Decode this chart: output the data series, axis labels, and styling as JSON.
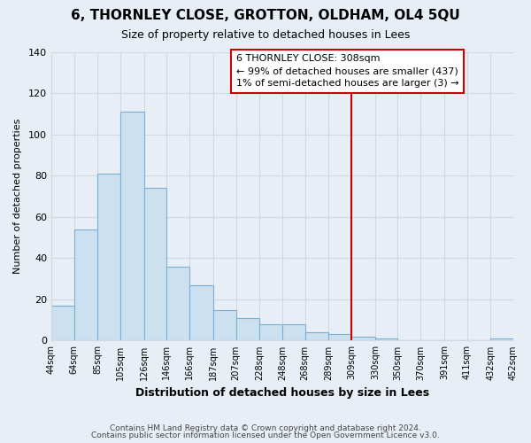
{
  "title": "6, THORNLEY CLOSE, GROTTON, OLDHAM, OL4 5QU",
  "subtitle": "Size of property relative to detached houses in Lees",
  "xlabel": "Distribution of detached houses by size in Lees",
  "ylabel": "Number of detached properties",
  "bar_color": "#cce0f0",
  "bar_edge_color": "#7ab0d4",
  "grid_color": "#d0d8e0",
  "bins": [
    44,
    64,
    85,
    105,
    126,
    146,
    166,
    187,
    207,
    228,
    248,
    268,
    289,
    309,
    330,
    350,
    370,
    391,
    411,
    432,
    452
  ],
  "counts": [
    17,
    54,
    81,
    111,
    74,
    36,
    27,
    15,
    11,
    8,
    8,
    4,
    3,
    2,
    1,
    0,
    0,
    0,
    0,
    1
  ],
  "tick_labels": [
    "44sqm",
    "64sqm",
    "85sqm",
    "105sqm",
    "126sqm",
    "146sqm",
    "166sqm",
    "187sqm",
    "207sqm",
    "228sqm",
    "248sqm",
    "268sqm",
    "289sqm",
    "309sqm",
    "330sqm",
    "350sqm",
    "370sqm",
    "391sqm",
    "411sqm",
    "432sqm",
    "452sqm"
  ],
  "property_line_x": 309,
  "property_line_color": "#cc0000",
  "annotation_title": "6 THORNLEY CLOSE: 308sqm",
  "annotation_line1": "← 99% of detached houses are smaller (437)",
  "annotation_line2": "1% of semi-detached houses are larger (3) →",
  "annotation_box_facecolor": "#ffffff",
  "annotation_box_edge_color": "#cc0000",
  "ylim": [
    0,
    140
  ],
  "yticks": [
    0,
    20,
    40,
    60,
    80,
    100,
    120,
    140
  ],
  "footer1": "Contains HM Land Registry data © Crown copyright and database right 2024.",
  "footer2": "Contains public sector information licensed under the Open Government Licence v3.0.",
  "background_color": "#e8eef5",
  "plot_bg_color": "#e8eef5"
}
